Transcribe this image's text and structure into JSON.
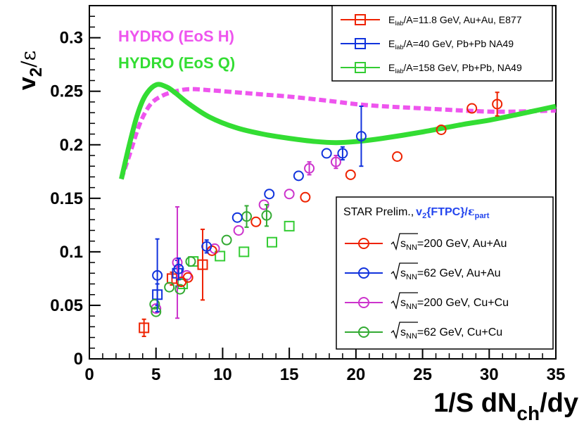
{
  "chart_data": {
    "type": "scatter",
    "xlabel": {
      "main": "1/S dN",
      "sub": "ch",
      "tail": "/dy"
    },
    "ylabel": {
      "main": "v",
      "sub": "2",
      "tail": "/ε"
    },
    "xlim": [
      0,
      35
    ],
    "ylim": [
      0,
      0.33
    ],
    "xticks": [
      "0",
      "5",
      "10",
      "15",
      "20",
      "25",
      "30",
      "35"
    ],
    "yticks": [
      "0",
      "0.05",
      "0.1",
      "0.15",
      "0.2",
      "0.25",
      "0.3"
    ],
    "model_labels": [
      {
        "text": "HYDRO (EoS H)",
        "color": "#ee55ee"
      },
      {
        "text": "HYDRO (EoS Q)",
        "color": "#33dd33"
      }
    ],
    "curves": [
      {
        "name": "HYDRO (EoS H)",
        "color": "#ee55ee",
        "style": "dashed",
        "x": [
          2.4,
          3.0,
          3.8,
          4.6,
          5.5,
          6.5,
          7.5,
          9,
          11,
          13,
          15,
          18,
          20,
          22,
          25,
          28,
          30,
          32,
          35
        ],
        "y": [
          0.168,
          0.19,
          0.22,
          0.238,
          0.246,
          0.25,
          0.252,
          0.251,
          0.249,
          0.247,
          0.245,
          0.241,
          0.238,
          0.236,
          0.234,
          0.232,
          0.231,
          0.231,
          0.232
        ]
      },
      {
        "name": "HYDRO (EoS Q)",
        "color": "#33dd33",
        "style": "solid",
        "x": [
          2.4,
          3.0,
          3.6,
          4.2,
          5.0,
          5.8,
          6.5,
          7.5,
          9,
          11,
          13,
          15,
          17,
          18.5,
          20,
          22,
          25,
          28,
          30,
          32,
          35
        ],
        "y": [
          0.168,
          0.2,
          0.228,
          0.246,
          0.256,
          0.254,
          0.248,
          0.238,
          0.226,
          0.216,
          0.21,
          0.206,
          0.203,
          0.202,
          0.203,
          0.206,
          0.212,
          0.219,
          0.223,
          0.228,
          0.236
        ]
      }
    ],
    "series": [
      {
        "name": "E877 Au+Au 11.8 GeV",
        "marker": "square",
        "color": "#ee2200",
        "points": [
          {
            "x": 4.1,
            "y": 0.029,
            "err": 0.008
          },
          {
            "x": 6.2,
            "y": 0.075,
            "err": 0.006
          },
          {
            "x": 8.5,
            "y": 0.088,
            "err": 0.033
          }
        ]
      },
      {
        "name": "NA49 Pb+Pb 40 GeV",
        "marker": "square",
        "color": "#1133dd",
        "points": [
          {
            "x": 5.1,
            "y": 0.06,
            "err": 0.01
          },
          {
            "x": 6.6,
            "y": 0.08,
            "err": 0.012
          }
        ]
      },
      {
        "name": "NA49 Pb+Pb 158 GeV",
        "marker": "square",
        "color": "#33cc33",
        "points": [
          {
            "x": 7.0,
            "y": 0.07,
            "err": 0.0
          },
          {
            "x": 7.8,
            "y": 0.091,
            "err": 0.0
          },
          {
            "x": 9.8,
            "y": 0.096,
            "err": 0.0
          },
          {
            "x": 11.6,
            "y": 0.1,
            "err": 0.0
          },
          {
            "x": 13.7,
            "y": 0.109,
            "err": 0.0
          },
          {
            "x": 15.0,
            "y": 0.124,
            "err": 0.0
          }
        ]
      },
      {
        "name": "STAR Au+Au 200 GeV",
        "marker": "circle",
        "color": "#ee2200",
        "points": [
          {
            "x": 6.9,
            "y": 0.072,
            "err": 0.0
          },
          {
            "x": 7.4,
            "y": 0.076,
            "err": 0.0
          },
          {
            "x": 9.2,
            "y": 0.101,
            "err": 0.0
          },
          {
            "x": 12.5,
            "y": 0.128,
            "err": 0.0
          },
          {
            "x": 16.2,
            "y": 0.151,
            "err": 0.0
          },
          {
            "x": 19.6,
            "y": 0.172,
            "err": 0.0
          },
          {
            "x": 23.1,
            "y": 0.189,
            "err": 0.0
          },
          {
            "x": 26.4,
            "y": 0.214,
            "err": 0.0
          },
          {
            "x": 28.7,
            "y": 0.234,
            "err": 0.0
          },
          {
            "x": 30.6,
            "y": 0.238,
            "err": 0.011
          }
        ]
      },
      {
        "name": "STAR Au+Au 62 GeV",
        "marker": "circle",
        "color": "#1133dd",
        "points": [
          {
            "x": 5.1,
            "y": 0.078,
            "err": 0.034
          },
          {
            "x": 6.7,
            "y": 0.084,
            "err": 0.01
          },
          {
            "x": 8.8,
            "y": 0.105,
            "err": 0.006
          },
          {
            "x": 11.1,
            "y": 0.132,
            "err": 0.0
          },
          {
            "x": 13.5,
            "y": 0.154,
            "err": 0.0
          },
          {
            "x": 15.7,
            "y": 0.171,
            "err": 0.0
          },
          {
            "x": 17.8,
            "y": 0.192,
            "err": 0.0
          },
          {
            "x": 19.0,
            "y": 0.192,
            "err": 0.006
          },
          {
            "x": 20.4,
            "y": 0.208,
            "err": 0.028
          }
        ]
      },
      {
        "name": "STAR Cu+Cu 200 GeV",
        "marker": "circle",
        "color": "#cc33cc",
        "points": [
          {
            "x": 5.0,
            "y": 0.047,
            "err": 0.0
          },
          {
            "x": 6.6,
            "y": 0.09,
            "err": 0.052
          },
          {
            "x": 7.3,
            "y": 0.078,
            "err": 0.0
          },
          {
            "x": 9.4,
            "y": 0.103,
            "err": 0.0
          },
          {
            "x": 11.2,
            "y": 0.12,
            "err": 0.0
          },
          {
            "x": 13.1,
            "y": 0.144,
            "err": 0.0
          },
          {
            "x": 15.0,
            "y": 0.154,
            "err": 0.0
          },
          {
            "x": 16.5,
            "y": 0.178,
            "err": 0.006
          },
          {
            "x": 18.5,
            "y": 0.184,
            "err": 0.006
          }
        ]
      },
      {
        "name": "STAR Cu+Cu 62 GeV",
        "marker": "circle",
        "color": "#33aa33",
        "points": [
          {
            "x": 4.9,
            "y": 0.051,
            "err": 0.0
          },
          {
            "x": 5.0,
            "y": 0.044,
            "err": 0.0
          },
          {
            "x": 6.0,
            "y": 0.067,
            "err": 0.0
          },
          {
            "x": 6.8,
            "y": 0.065,
            "err": 0.0
          },
          {
            "x": 7.6,
            "y": 0.091,
            "err": 0.0
          },
          {
            "x": 10.3,
            "y": 0.111,
            "err": 0.0
          },
          {
            "x": 11.8,
            "y": 0.133,
            "err": 0.01
          },
          {
            "x": 13.3,
            "y": 0.134,
            "err": 0.01
          }
        ]
      }
    ],
    "legend_top": [
      {
        "series": "E877 Au+Au 11.8 GeV",
        "pre": "E",
        "sub": "lab",
        "post": "/A=11.8 GeV, Au+Au, E877"
      },
      {
        "series": "NA49 Pb+Pb 40 GeV",
        "pre": "E",
        "sub": "lab",
        "post": "/A=40 GeV, Pb+Pb NA49"
      },
      {
        "series": "NA49 Pb+Pb 158 GeV",
        "pre": "E",
        "sub": "lab",
        "post": "/A=158 GeV, Pb+Pb, NA49"
      }
    ],
    "legend_bottom": {
      "header_plain": "STAR Prelim.,",
      "header_v": "v",
      "header_v_sub": "2",
      "header_mid": "{FTPC}/",
      "header_eps": "ε",
      "header_eps_sub": "part",
      "header_color": "#2244ee",
      "entries": [
        {
          "series": "STAR Au+Au 200 GeV",
          "root": "s",
          "sub": "NN",
          "text": "=200 GeV, Au+Au"
        },
        {
          "series": "STAR Au+Au 62 GeV",
          "root": "s",
          "sub": "NN",
          "text": "=62 GeV, Au+Au"
        },
        {
          "series": "STAR Cu+Cu 200 GeV",
          "root": "s",
          "sub": "NN",
          "text": "=200 GeV, Cu+Cu"
        },
        {
          "series": "STAR Cu+Cu 62 GeV",
          "root": "s",
          "sub": "NN",
          "text": "=62 GeV, Cu+Cu"
        }
      ]
    }
  }
}
